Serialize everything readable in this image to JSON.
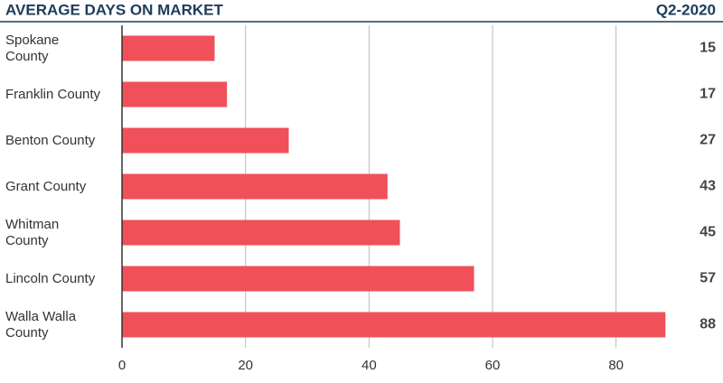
{
  "chart_data": {
    "type": "bar",
    "orientation": "horizontal",
    "title": "AVERAGE DAYS ON MARKET",
    "subtitle": "Q2-2020",
    "categories": [
      "Spokane\nCounty",
      "Franklin County",
      "Benton County",
      "Grant County",
      "Whitman\nCounty",
      "Lincoln County",
      "Walla Walla\nCounty"
    ],
    "values": [
      15,
      17,
      27,
      43,
      45,
      57,
      88
    ],
    "color": "#f0505a",
    "xlim": [
      0,
      90
    ],
    "xticks": [
      0,
      20,
      40,
      60,
      80
    ],
    "grid": true
  }
}
